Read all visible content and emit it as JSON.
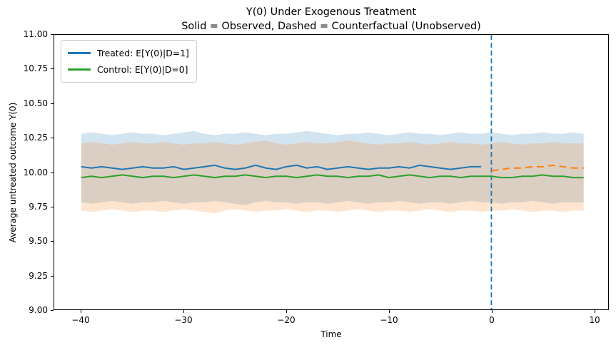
{
  "figure": {
    "title_line1": "Y(0) Under Exogenous Treatment",
    "title_line2": "Solid = Observed, Dashed = Counterfactual (Unobserved)",
    "xlabel": "Time",
    "ylabel": "Average untreated outcome Y(0)"
  },
  "legend": {
    "items": [
      {
        "label": "Treated: E[Y(0)|D=1]",
        "color": "#1f77b4"
      },
      {
        "label": "Control: E[Y(0)|D=0]",
        "color": "#2ca02c"
      }
    ]
  },
  "axes": {
    "xlim": [
      -42.64,
      11.39
    ],
    "ylim": [
      9.0,
      11.0
    ],
    "xticks": [
      -40,
      -30,
      -20,
      -10,
      0,
      10
    ],
    "xtick_labels": [
      "−40",
      "−30",
      "−20",
      "−10",
      "0",
      "10"
    ],
    "yticks": [
      11.0,
      10.75,
      10.5,
      10.25,
      10.0,
      9.75,
      9.5,
      9.25,
      9.0
    ],
    "ytick_labels": [
      "11.00",
      "10.75",
      "10.50",
      "10.25",
      "10.00",
      "9.75",
      "9.50",
      "9.25",
      "9.00"
    ],
    "grid": false
  },
  "colors": {
    "treated_line": "#1f77b4",
    "control_line": "#2ca02c",
    "counterfactual_line": "#ff7f0e",
    "vline": "#1f77b4",
    "treated_band": "#1f77b4",
    "control_band": "#ff7f0e",
    "band_opacity": 0.2
  },
  "chart_data": {
    "type": "line",
    "title": "Y(0) Under Exogenous Treatment",
    "subtitle": "Solid = Observed, Dashed = Counterfactual (Unobserved)",
    "xlabel": "Time",
    "ylabel": "Average untreated outcome Y(0)",
    "xlim": [
      -42.64,
      11.39
    ],
    "ylim": [
      9.0,
      11.0
    ],
    "legend_position": "upper left",
    "grid": false,
    "vline": {
      "x": 0,
      "color": "#1f77b4",
      "style": "dashed"
    },
    "series": [
      {
        "name": "Treated: E[Y(0)|D=1] (observed)",
        "color": "#1f77b4",
        "style": "solid",
        "x_from": -40,
        "x_to": -1,
        "values": [
          10.04,
          10.03,
          10.04,
          10.03,
          10.02,
          10.03,
          10.04,
          10.03,
          10.03,
          10.04,
          10.02,
          10.03,
          10.04,
          10.05,
          10.03,
          10.02,
          10.03,
          10.05,
          10.03,
          10.02,
          10.04,
          10.05,
          10.03,
          10.04,
          10.02,
          10.03,
          10.04,
          10.03,
          10.02,
          10.03,
          10.03,
          10.04,
          10.03,
          10.05,
          10.04,
          10.03,
          10.02,
          10.03,
          10.04,
          10.04
        ]
      },
      {
        "name": "Treated counterfactual E[Y(0)|D=1] (unobserved, dashed)",
        "color": "#ff7f0e",
        "style": "dashed",
        "x_from": 0,
        "x_to": 9,
        "values": [
          10.01,
          10.02,
          10.03,
          10.03,
          10.04,
          10.04,
          10.05,
          10.04,
          10.03,
          10.03
        ]
      },
      {
        "name": "Control: E[Y(0)|D=0] (observed)",
        "color": "#2ca02c",
        "style": "solid",
        "x_from": -40,
        "x_to": 9,
        "values": [
          9.96,
          9.97,
          9.96,
          9.97,
          9.98,
          9.97,
          9.96,
          9.97,
          9.97,
          9.96,
          9.97,
          9.98,
          9.97,
          9.96,
          9.97,
          9.97,
          9.98,
          9.97,
          9.96,
          9.97,
          9.97,
          9.96,
          9.97,
          9.98,
          9.97,
          9.97,
          9.96,
          9.97,
          9.97,
          9.98,
          9.96,
          9.97,
          9.98,
          9.97,
          9.96,
          9.97,
          9.97,
          9.96,
          9.97,
          9.97,
          9.97,
          9.96,
          9.96,
          9.97,
          9.97,
          9.98,
          9.97,
          9.97,
          9.96,
          9.96
        ]
      }
    ],
    "bands": [
      {
        "name": "treated-ci",
        "color": "#1f77b4",
        "opacity": 0.2,
        "x_from": -40,
        "x_to": 9,
        "upper": [
          10.28,
          10.29,
          10.28,
          10.27,
          10.28,
          10.29,
          10.28,
          10.28,
          10.27,
          10.28,
          10.29,
          10.3,
          10.28,
          10.27,
          10.28,
          10.28,
          10.29,
          10.28,
          10.27,
          10.28,
          10.28,
          10.29,
          10.3,
          10.29,
          10.28,
          10.27,
          10.28,
          10.28,
          10.29,
          10.28,
          10.27,
          10.28,
          10.29,
          10.28,
          10.28,
          10.27,
          10.28,
          10.29,
          10.28,
          10.28,
          10.29,
          10.28,
          10.27,
          10.28,
          10.28,
          10.29,
          10.28,
          10.28,
          10.29,
          10.28
        ],
        "lower": [
          9.78,
          9.77,
          9.78,
          9.79,
          9.78,
          9.77,
          9.78,
          9.78,
          9.79,
          9.78,
          9.77,
          9.78,
          9.78,
          9.79,
          9.78,
          9.77,
          9.76,
          9.78,
          9.79,
          9.78,
          9.78,
          9.77,
          9.78,
          9.78,
          9.77,
          9.78,
          9.79,
          9.78,
          9.77,
          9.78,
          9.78,
          9.79,
          9.78,
          9.77,
          9.78,
          9.78,
          9.77,
          9.78,
          9.79,
          9.78,
          9.78,
          9.77,
          9.78,
          9.78,
          9.79,
          9.78,
          9.77,
          9.78,
          9.78,
          9.78
        ]
      },
      {
        "name": "control-ci",
        "color": "#ff7f0e",
        "opacity": 0.2,
        "x_from": -40,
        "x_to": 9,
        "upper": [
          10.21,
          10.22,
          10.21,
          10.2,
          10.21,
          10.22,
          10.21,
          10.21,
          10.22,
          10.21,
          10.2,
          10.21,
          10.21,
          10.22,
          10.21,
          10.2,
          10.21,
          10.22,
          10.23,
          10.21,
          10.2,
          10.21,
          10.22,
          10.21,
          10.21,
          10.22,
          10.23,
          10.22,
          10.21,
          10.2,
          10.21,
          10.21,
          10.22,
          10.21,
          10.2,
          10.21,
          10.22,
          10.21,
          10.21,
          10.2,
          10.21,
          10.22,
          10.21,
          10.2,
          10.21,
          10.21,
          10.22,
          10.21,
          10.21,
          10.21
        ],
        "lower": [
          9.72,
          9.71,
          9.72,
          9.73,
          9.72,
          9.71,
          9.72,
          9.72,
          9.71,
          9.72,
          9.73,
          9.72,
          9.71,
          9.7,
          9.72,
          9.73,
          9.72,
          9.71,
          9.72,
          9.72,
          9.73,
          9.72,
          9.71,
          9.72,
          9.72,
          9.71,
          9.72,
          9.73,
          9.72,
          9.71,
          9.72,
          9.72,
          9.71,
          9.72,
          9.73,
          9.72,
          9.71,
          9.72,
          9.72,
          9.71,
          9.72,
          9.72,
          9.73,
          9.72,
          9.71,
          9.72,
          9.72,
          9.71,
          9.72,
          9.72
        ]
      }
    ]
  }
}
